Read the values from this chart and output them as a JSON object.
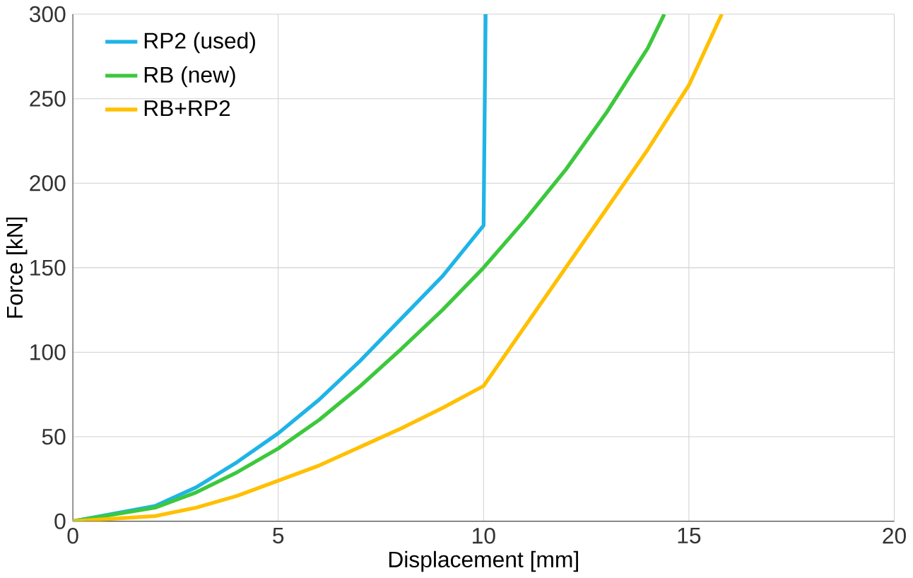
{
  "chart_data": {
    "type": "line",
    "xlabel": "Displacement [mm]",
    "ylabel": "Force [kN]",
    "xlim": [
      0,
      20
    ],
    "ylim": [
      0,
      300
    ],
    "xticks": [
      0,
      5,
      10,
      15,
      20
    ],
    "yticks": [
      0,
      50,
      100,
      150,
      200,
      250,
      300
    ],
    "grid": true,
    "legend": "top left",
    "line_style": "solid",
    "marker": "none",
    "series": [
      {
        "name": "RP2 (used)",
        "color": "#1fb4e6",
        "x": [
          0,
          2,
          3,
          4,
          5,
          6,
          7,
          8,
          9,
          10,
          10.05
        ],
        "values": [
          0,
          9,
          20,
          35,
          52,
          72,
          95,
          120,
          145,
          175,
          300
        ]
      },
      {
        "name": "RB (new)",
        "color": "#3cc83c",
        "x": [
          0,
          2,
          3,
          4,
          5,
          6,
          7,
          8,
          9,
          10,
          11,
          12,
          13,
          14,
          14.4
        ],
        "values": [
          0,
          8,
          17,
          29,
          43,
          60,
          80,
          102,
          125,
          150,
          178,
          208,
          242,
          280,
          300
        ]
      },
      {
        "name": "RB+RP2",
        "color": "#ffc000",
        "x": [
          0,
          2,
          3,
          4,
          5,
          6,
          7,
          8,
          9,
          10,
          11,
          12,
          13,
          14,
          15,
          15.8
        ],
        "values": [
          0,
          3,
          8,
          15,
          24,
          33,
          44,
          55,
          67,
          80,
          115,
          150,
          185,
          220,
          258,
          300
        ]
      }
    ]
  }
}
